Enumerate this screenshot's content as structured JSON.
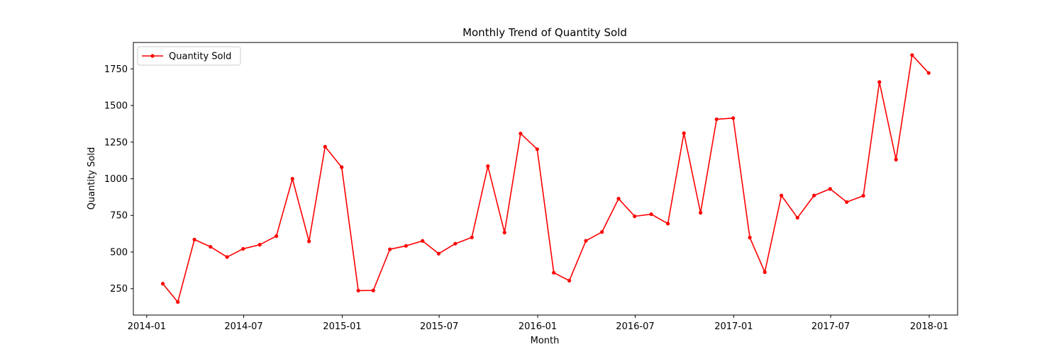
{
  "chart_data": {
    "type": "line",
    "title": "Monthly Trend of Quantity Sold",
    "xlabel": "Month",
    "ylabel": "Quantity Sold",
    "x": [
      "2014-01-31",
      "2014-02-28",
      "2014-03-31",
      "2014-04-30",
      "2014-05-31",
      "2014-06-30",
      "2014-07-31",
      "2014-08-31",
      "2014-09-30",
      "2014-10-31",
      "2014-11-30",
      "2014-12-31",
      "2015-01-31",
      "2015-02-28",
      "2015-03-31",
      "2015-04-30",
      "2015-05-31",
      "2015-06-30",
      "2015-07-31",
      "2015-08-31",
      "2015-09-30",
      "2015-10-31",
      "2015-11-30",
      "2015-12-31",
      "2016-01-31",
      "2016-02-29",
      "2016-03-31",
      "2016-04-30",
      "2016-05-31",
      "2016-06-30",
      "2016-07-31",
      "2016-08-31",
      "2016-09-30",
      "2016-10-31",
      "2016-11-30",
      "2016-12-31",
      "2017-01-31",
      "2017-02-28",
      "2017-03-31",
      "2017-04-30",
      "2017-05-31",
      "2017-06-30",
      "2017-07-31",
      "2017-08-31",
      "2017-09-30",
      "2017-10-31",
      "2017-11-30",
      "2017-12-31"
    ],
    "series": [
      {
        "name": "Quantity Sold",
        "color": "#ff0000",
        "marker": "circle",
        "values": [
          284,
          159,
          585,
          536,
          466,
          522,
          550,
          609,
          1000,
          573,
          1219,
          1079,
          237,
          238,
          519,
          542,
          576,
          489,
          557,
          600,
          1086,
          633,
          1309,
          1202,
          359,
          305,
          577,
          637,
          864,
          744,
          758,
          694,
          1311,
          768,
          1406,
          1414,
          599,
          363,
          886,
          734,
          886,
          931,
          841,
          884,
          1660,
          1131,
          1844,
          1722
        ]
      }
    ],
    "xticks": [
      "2014-01",
      "2014-07",
      "2015-01",
      "2015-07",
      "2016-01",
      "2016-07",
      "2017-01",
      "2017-07",
      "2018-01"
    ],
    "yticks": [
      250,
      500,
      750,
      1000,
      1250,
      1500,
      1750
    ],
    "xlim": [
      "2013-12-07",
      "2018-02-23"
    ],
    "ylim": [
      70,
      1930
    ],
    "grid": false,
    "legend_position": "upper-left"
  }
}
